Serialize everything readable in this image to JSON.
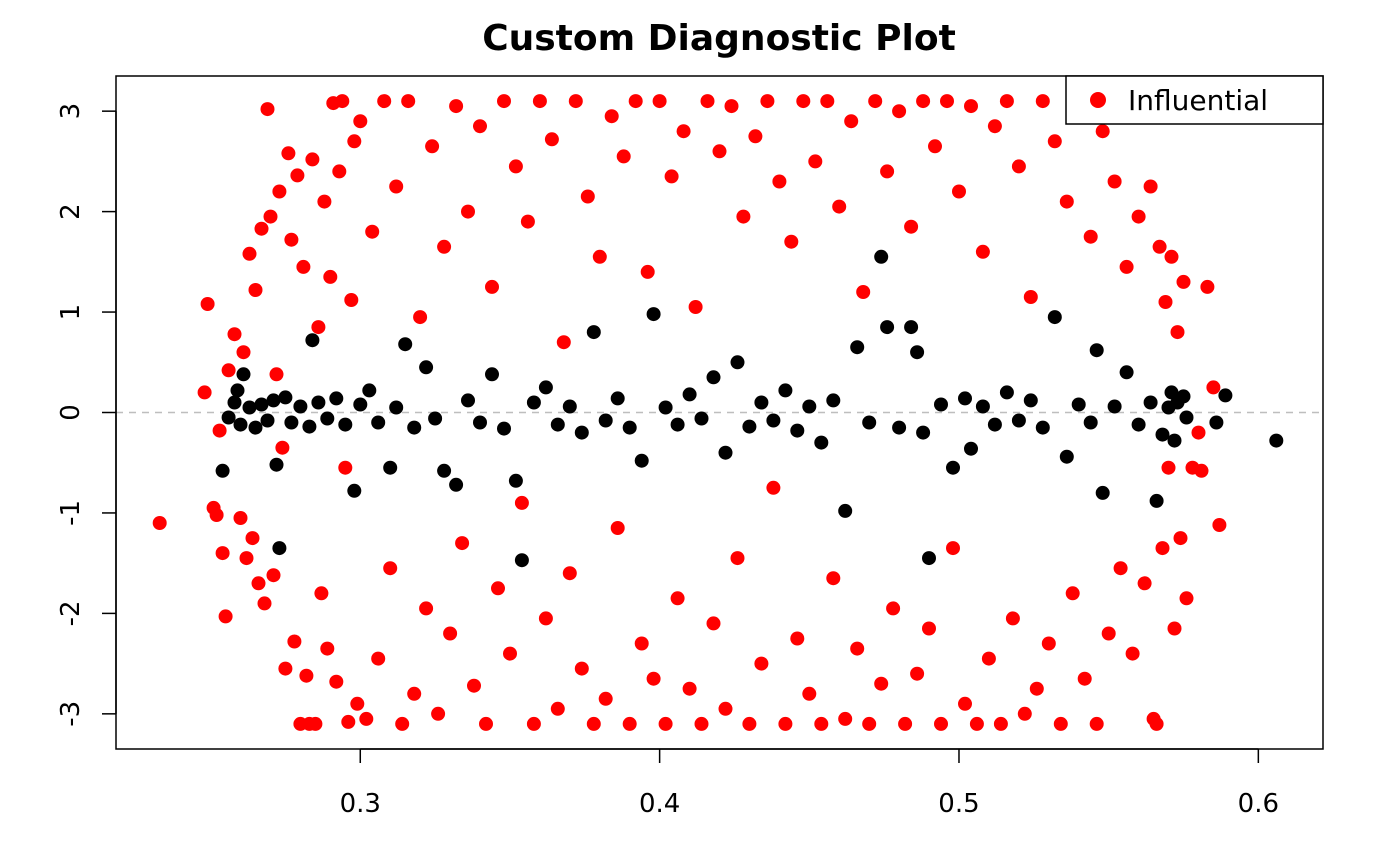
{
  "chart_data": {
    "type": "scatter",
    "title": "Custom Diagnostic Plot",
    "xlabel": "",
    "ylabel": "",
    "xlim": [
      0.2184,
      0.6216
    ],
    "ylim": [
      -3.35,
      3.35
    ],
    "x_ticks": [
      0.3,
      0.4,
      0.5,
      0.6
    ],
    "x_tick_labels": [
      "0.3",
      "0.4",
      "0.5",
      "0.6"
    ],
    "y_ticks": [
      -3,
      -2,
      -1,
      0,
      1,
      2,
      3
    ],
    "y_tick_labels": [
      "-3",
      "-2",
      "-1",
      "0",
      "1",
      "2",
      "3"
    ],
    "reference_line": {
      "y": 0,
      "style": "dashed",
      "color": "#bebebe"
    },
    "grid": false,
    "legend": {
      "position": "top-right",
      "entries": [
        "Influential"
      ]
    },
    "series": [
      {
        "name": "Influential",
        "color": "#ff0000",
        "points": [
          [
            0.233,
            -1.1
          ],
          [
            0.248,
            0.2
          ],
          [
            0.249,
            1.08
          ],
          [
            0.251,
            -0.95
          ],
          [
            0.252,
            -1.02
          ],
          [
            0.253,
            -0.18
          ],
          [
            0.254,
            -1.4
          ],
          [
            0.255,
            -2.03
          ],
          [
            0.256,
            0.42
          ],
          [
            0.258,
            0.78
          ],
          [
            0.26,
            -1.05
          ],
          [
            0.261,
            0.6
          ],
          [
            0.262,
            -1.45
          ],
          [
            0.263,
            1.58
          ],
          [
            0.264,
            -1.25
          ],
          [
            0.265,
            1.22
          ],
          [
            0.266,
            -1.7
          ],
          [
            0.267,
            1.83
          ],
          [
            0.268,
            -1.9
          ],
          [
            0.269,
            3.02
          ],
          [
            0.27,
            1.95
          ],
          [
            0.271,
            -1.62
          ],
          [
            0.272,
            0.38
          ],
          [
            0.273,
            2.2
          ],
          [
            0.274,
            -0.35
          ],
          [
            0.275,
            -2.55
          ],
          [
            0.276,
            2.58
          ],
          [
            0.277,
            1.72
          ],
          [
            0.278,
            -2.28
          ],
          [
            0.279,
            2.36
          ],
          [
            0.28,
            -3.1
          ],
          [
            0.281,
            1.45
          ],
          [
            0.282,
            -2.62
          ],
          [
            0.283,
            -3.1
          ],
          [
            0.284,
            2.52
          ],
          [
            0.285,
            -3.1
          ],
          [
            0.286,
            0.85
          ],
          [
            0.287,
            -1.8
          ],
          [
            0.288,
            2.1
          ],
          [
            0.289,
            -2.35
          ],
          [
            0.29,
            1.35
          ],
          [
            0.291,
            3.08
          ],
          [
            0.292,
            -2.68
          ],
          [
            0.293,
            2.4
          ],
          [
            0.294,
            3.1
          ],
          [
            0.295,
            -0.55
          ],
          [
            0.296,
            -3.08
          ],
          [
            0.297,
            1.12
          ],
          [
            0.298,
            2.7
          ],
          [
            0.299,
            -2.9
          ],
          [
            0.3,
            2.9
          ],
          [
            0.302,
            -3.05
          ],
          [
            0.304,
            1.8
          ],
          [
            0.306,
            -2.45
          ],
          [
            0.308,
            3.1
          ],
          [
            0.31,
            -1.55
          ],
          [
            0.312,
            2.25
          ],
          [
            0.314,
            -3.1
          ],
          [
            0.316,
            3.1
          ],
          [
            0.318,
            -2.8
          ],
          [
            0.32,
            0.95
          ],
          [
            0.322,
            -1.95
          ],
          [
            0.324,
            2.65
          ],
          [
            0.326,
            -3.0
          ],
          [
            0.328,
            1.65
          ],
          [
            0.33,
            -2.2
          ],
          [
            0.332,
            3.05
          ],
          [
            0.334,
            -1.3
          ],
          [
            0.336,
            2.0
          ],
          [
            0.338,
            -2.72
          ],
          [
            0.34,
            2.85
          ],
          [
            0.342,
            -3.1
          ],
          [
            0.344,
            1.25
          ],
          [
            0.346,
            -1.75
          ],
          [
            0.348,
            3.1
          ],
          [
            0.35,
            -2.4
          ],
          [
            0.352,
            2.45
          ],
          [
            0.354,
            -0.9
          ],
          [
            0.356,
            1.9
          ],
          [
            0.358,
            -3.1
          ],
          [
            0.36,
            3.1
          ],
          [
            0.362,
            -2.05
          ],
          [
            0.364,
            2.72
          ],
          [
            0.366,
            -2.95
          ],
          [
            0.368,
            0.7
          ],
          [
            0.37,
            -1.6
          ],
          [
            0.372,
            3.1
          ],
          [
            0.374,
            -2.55
          ],
          [
            0.376,
            2.15
          ],
          [
            0.378,
            -3.1
          ],
          [
            0.38,
            1.55
          ],
          [
            0.382,
            -2.85
          ],
          [
            0.384,
            2.95
          ],
          [
            0.386,
            -1.15
          ],
          [
            0.388,
            2.55
          ],
          [
            0.39,
            -3.1
          ],
          [
            0.392,
            3.1
          ],
          [
            0.394,
            -2.3
          ],
          [
            0.396,
            1.4
          ],
          [
            0.398,
            -2.65
          ],
          [
            0.4,
            3.1
          ],
          [
            0.402,
            -3.1
          ],
          [
            0.404,
            2.35
          ],
          [
            0.406,
            -1.85
          ],
          [
            0.408,
            2.8
          ],
          [
            0.41,
            -2.75
          ],
          [
            0.412,
            1.05
          ],
          [
            0.414,
            -3.1
          ],
          [
            0.416,
            3.1
          ],
          [
            0.418,
            -2.1
          ],
          [
            0.42,
            2.6
          ],
          [
            0.422,
            -2.95
          ],
          [
            0.424,
            3.05
          ],
          [
            0.426,
            -1.45
          ],
          [
            0.428,
            1.95
          ],
          [
            0.43,
            -3.1
          ],
          [
            0.432,
            2.75
          ],
          [
            0.434,
            -2.5
          ],
          [
            0.436,
            3.1
          ],
          [
            0.438,
            -0.75
          ],
          [
            0.44,
            2.3
          ],
          [
            0.442,
            -3.1
          ],
          [
            0.444,
            1.7
          ],
          [
            0.446,
            -2.25
          ],
          [
            0.448,
            3.1
          ],
          [
            0.45,
            -2.8
          ],
          [
            0.452,
            2.5
          ],
          [
            0.454,
            -3.1
          ],
          [
            0.456,
            3.1
          ],
          [
            0.458,
            -1.65
          ],
          [
            0.46,
            2.05
          ],
          [
            0.462,
            -3.05
          ],
          [
            0.464,
            2.9
          ],
          [
            0.466,
            -2.35
          ],
          [
            0.468,
            1.2
          ],
          [
            0.47,
            -3.1
          ],
          [
            0.472,
            3.1
          ],
          [
            0.474,
            -2.7
          ],
          [
            0.476,
            2.4
          ],
          [
            0.478,
            -1.95
          ],
          [
            0.48,
            3.0
          ],
          [
            0.482,
            -3.1
          ],
          [
            0.484,
            1.85
          ],
          [
            0.486,
            -2.6
          ],
          [
            0.488,
            3.1
          ],
          [
            0.49,
            -2.15
          ],
          [
            0.492,
            2.65
          ],
          [
            0.494,
            -3.1
          ],
          [
            0.496,
            3.1
          ],
          [
            0.498,
            -1.35
          ],
          [
            0.5,
            2.2
          ],
          [
            0.502,
            -2.9
          ],
          [
            0.504,
            3.05
          ],
          [
            0.506,
            -3.1
          ],
          [
            0.508,
            1.6
          ],
          [
            0.51,
            -2.45
          ],
          [
            0.512,
            2.85
          ],
          [
            0.514,
            -3.1
          ],
          [
            0.516,
            3.1
          ],
          [
            0.518,
            -2.05
          ],
          [
            0.52,
            2.45
          ],
          [
            0.522,
            -3.0
          ],
          [
            0.524,
            1.15
          ],
          [
            0.526,
            -2.75
          ],
          [
            0.528,
            3.1
          ],
          [
            0.53,
            -2.3
          ],
          [
            0.532,
            2.7
          ],
          [
            0.534,
            -3.1
          ],
          [
            0.536,
            2.1
          ],
          [
            0.538,
            -1.8
          ],
          [
            0.54,
            2.95
          ],
          [
            0.542,
            -2.65
          ],
          [
            0.544,
            1.75
          ],
          [
            0.546,
            -3.1
          ],
          [
            0.548,
            2.8
          ],
          [
            0.55,
            -2.2
          ],
          [
            0.552,
            2.3
          ],
          [
            0.554,
            -1.55
          ],
          [
            0.556,
            1.45
          ],
          [
            0.558,
            -2.4
          ],
          [
            0.56,
            1.95
          ],
          [
            0.562,
            -1.7
          ],
          [
            0.564,
            2.25
          ],
          [
            0.565,
            -3.05
          ],
          [
            0.566,
            -3.1
          ],
          [
            0.567,
            1.65
          ],
          [
            0.568,
            -1.35
          ],
          [
            0.569,
            1.1
          ],
          [
            0.57,
            -0.55
          ],
          [
            0.571,
            1.55
          ],
          [
            0.572,
            -2.15
          ],
          [
            0.573,
            0.8
          ],
          [
            0.574,
            -1.25
          ],
          [
            0.575,
            1.3
          ],
          [
            0.576,
            -1.85
          ],
          [
            0.578,
            -0.55
          ],
          [
            0.58,
            -0.2
          ],
          [
            0.581,
            -0.58
          ],
          [
            0.583,
            1.25
          ],
          [
            0.585,
            0.25
          ],
          [
            0.587,
            -1.12
          ]
        ]
      },
      {
        "name": "",
        "color": "#000000",
        "points": [
          [
            0.254,
            -0.58
          ],
          [
            0.256,
            -0.05
          ],
          [
            0.258,
            0.1
          ],
          [
            0.259,
            0.22
          ],
          [
            0.26,
            -0.12
          ],
          [
            0.261,
            0.38
          ],
          [
            0.263,
            0.05
          ],
          [
            0.265,
            -0.15
          ],
          [
            0.267,
            0.08
          ],
          [
            0.269,
            -0.08
          ],
          [
            0.271,
            0.12
          ],
          [
            0.272,
            -0.52
          ],
          [
            0.273,
            -1.35
          ],
          [
            0.275,
            0.15
          ],
          [
            0.277,
            -0.1
          ],
          [
            0.28,
            0.06
          ],
          [
            0.283,
            -0.14
          ],
          [
            0.284,
            0.72
          ],
          [
            0.286,
            0.1
          ],
          [
            0.289,
            -0.06
          ],
          [
            0.292,
            0.14
          ],
          [
            0.295,
            -0.12
          ],
          [
            0.298,
            -0.78
          ],
          [
            0.3,
            0.08
          ],
          [
            0.303,
            0.22
          ],
          [
            0.306,
            -0.1
          ],
          [
            0.31,
            -0.55
          ],
          [
            0.312,
            0.05
          ],
          [
            0.315,
            0.68
          ],
          [
            0.318,
            -0.15
          ],
          [
            0.322,
            0.45
          ],
          [
            0.325,
            -0.06
          ],
          [
            0.328,
            -0.58
          ],
          [
            0.332,
            -0.72
          ],
          [
            0.336,
            0.12
          ],
          [
            0.34,
            -0.1
          ],
          [
            0.344,
            0.38
          ],
          [
            0.348,
            -0.16
          ],
          [
            0.352,
            -0.68
          ],
          [
            0.354,
            -1.47
          ],
          [
            0.358,
            0.1
          ],
          [
            0.362,
            0.25
          ],
          [
            0.366,
            -0.12
          ],
          [
            0.37,
            0.06
          ],
          [
            0.374,
            -0.2
          ],
          [
            0.378,
            0.8
          ],
          [
            0.382,
            -0.08
          ],
          [
            0.386,
            0.14
          ],
          [
            0.39,
            -0.15
          ],
          [
            0.394,
            -0.48
          ],
          [
            0.398,
            0.98
          ],
          [
            0.402,
            0.05
          ],
          [
            0.406,
            -0.12
          ],
          [
            0.41,
            0.18
          ],
          [
            0.414,
            -0.06
          ],
          [
            0.418,
            0.35
          ],
          [
            0.422,
            -0.4
          ],
          [
            0.426,
            0.5
          ],
          [
            0.43,
            -0.14
          ],
          [
            0.434,
            0.1
          ],
          [
            0.438,
            -0.08
          ],
          [
            0.442,
            0.22
          ],
          [
            0.446,
            -0.18
          ],
          [
            0.45,
            0.06
          ],
          [
            0.454,
            -0.3
          ],
          [
            0.458,
            0.12
          ],
          [
            0.462,
            -0.98
          ],
          [
            0.466,
            0.65
          ],
          [
            0.47,
            -0.1
          ],
          [
            0.474,
            1.55
          ],
          [
            0.476,
            0.85
          ],
          [
            0.48,
            -0.15
          ],
          [
            0.484,
            0.85
          ],
          [
            0.486,
            0.6
          ],
          [
            0.488,
            -0.2
          ],
          [
            0.49,
            -1.45
          ],
          [
            0.494,
            0.08
          ],
          [
            0.498,
            -0.55
          ],
          [
            0.502,
            0.14
          ],
          [
            0.504,
            -0.36
          ],
          [
            0.508,
            0.06
          ],
          [
            0.512,
            -0.12
          ],
          [
            0.516,
            0.2
          ],
          [
            0.52,
            -0.08
          ],
          [
            0.524,
            0.12
          ],
          [
            0.528,
            -0.15
          ],
          [
            0.532,
            0.95
          ],
          [
            0.536,
            -0.44
          ],
          [
            0.54,
            0.08
          ],
          [
            0.544,
            -0.1
          ],
          [
            0.546,
            0.62
          ],
          [
            0.548,
            -0.8
          ],
          [
            0.552,
            0.06
          ],
          [
            0.556,
            0.4
          ],
          [
            0.56,
            -0.12
          ],
          [
            0.564,
            0.1
          ],
          [
            0.566,
            -0.88
          ],
          [
            0.568,
            -0.22
          ],
          [
            0.57,
            0.05
          ],
          [
            0.571,
            0.2
          ],
          [
            0.572,
            -0.28
          ],
          [
            0.573,
            0.1
          ],
          [
            0.575,
            0.16
          ],
          [
            0.576,
            -0.05
          ],
          [
            0.586,
            -0.1
          ],
          [
            0.589,
            0.17
          ],
          [
            0.606,
            -0.28
          ]
        ]
      }
    ]
  }
}
